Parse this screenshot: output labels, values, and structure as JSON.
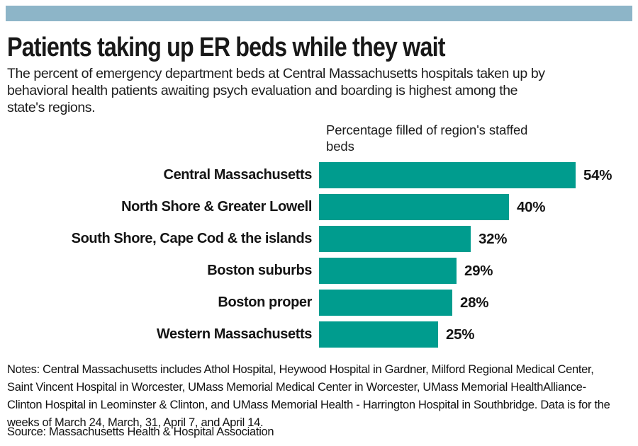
{
  "page": {
    "title": "Patients taking up ER beds while they wait",
    "subtitle": "The percent of emergency department beds at Central Massachusetts hospitals taken up by behavioral health patients awaiting psych evaluation and boarding is highest among the state's regions.",
    "notes": "Notes: Central Massachusetts includes Athol Hospital, Heywood Hospital in Gardner, Milford Regional Medical Center, Saint Vincent Hospital in Worcester, UMass Memorial Medical Center in Worcester, UMass Memorial HealthAlliance-Clinton Hospital in Leominster & Clinton, and UMass Memorial Health - Harrington Hospital in Southbridge. Data is for the weeks of March 24, March, 31, April 7, and April 14.",
    "source": "Source: Massachusetts Health & Hospital Association",
    "top_band_color": "#8db5c8"
  },
  "chart_data": {
    "type": "bar",
    "orientation": "horizontal",
    "title": "Patients taking up ER beds while they wait",
    "axis_label": "Percentage filled of region's staffed beds",
    "categories": [
      "Central Massachusetts",
      "North Shore & Greater Lowell",
      "South Shore, Cape Cod & the islands",
      "Boston suburbs",
      "Boston proper",
      "Western Massachusetts"
    ],
    "values": [
      54,
      40,
      32,
      29,
      28,
      25
    ],
    "value_suffix": "%",
    "bar_color": "#009c8e",
    "xlim": [
      0,
      60
    ],
    "grid": false,
    "legend": false
  }
}
